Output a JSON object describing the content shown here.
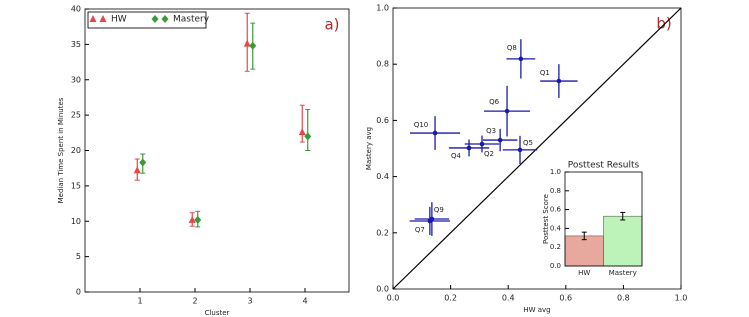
{
  "chart_data": [
    {
      "type": "errorbar",
      "annotation": "a)",
      "xlabel": "Cluster",
      "ylabel": "Median Time Spent in Minutes",
      "xlim": [
        0,
        4.8
      ],
      "ylim": [
        0,
        40
      ],
      "xticks": [
        1,
        2,
        3,
        4
      ],
      "yticks": [
        0,
        5,
        10,
        15,
        20,
        25,
        30,
        35,
        40
      ],
      "legend": "upper left",
      "series": [
        {
          "name": "HW",
          "color": "#e8474a",
          "marker": "triangle",
          "x": [
            0.95,
            1.95,
            2.95,
            3.95
          ],
          "values": [
            17.2,
            10.2,
            35.1,
            22.6
          ],
          "lower": [
            15.8,
            9.3,
            31.2,
            21.2
          ],
          "upper": [
            18.8,
            11.2,
            39.4,
            26.4
          ]
        },
        {
          "name": "Mastery",
          "color": "#3a9a3a",
          "marker": "diamond",
          "x": [
            1.05,
            2.05,
            3.05,
            4.05
          ],
          "values": [
            18.3,
            10.2,
            34.8,
            22.0
          ],
          "lower": [
            16.8,
            9.2,
            31.5,
            20.0
          ],
          "upper": [
            19.5,
            11.4,
            38.0,
            25.8
          ]
        }
      ]
    },
    {
      "type": "scatter",
      "annotation": "b)",
      "xlabel": "HW avg",
      "ylabel": "Mastery avg",
      "xlim": [
        0,
        1
      ],
      "ylim": [
        0,
        1
      ],
      "xticks": [
        {
          "value": 0,
          "label": "0.0"
        },
        0.2,
        0.4,
        0.6,
        0.8,
        {
          "value": 1,
          "label": "1.0"
        }
      ],
      "yticks": [
        {
          "value": 0,
          "label": "0.0"
        },
        0.2,
        0.4,
        0.6,
        0.8,
        {
          "value": 1,
          "label": "1.0"
        }
      ],
      "diagonal": true,
      "color": "#1a1aa8",
      "labels": [
        "Q1",
        "Q2",
        "Q3",
        "Q4",
        "Q5",
        "Q6",
        "Q7",
        "Q8",
        "Q9",
        "Q10"
      ],
      "x": [
        0.576,
        0.309,
        0.372,
        0.264,
        0.441,
        0.396,
        0.128,
        0.444,
        0.135,
        0.146
      ],
      "values": [
        0.74,
        0.516,
        0.53,
        0.502,
        0.495,
        0.633,
        0.242,
        0.819,
        0.249,
        0.555
      ],
      "xerr": [
        0.065,
        0.06,
        0.06,
        0.07,
        0.06,
        0.08,
        0.07,
        0.05,
        0.06,
        0.087
      ],
      "yerr": [
        0.06,
        0.03,
        0.04,
        0.03,
        0.05,
        0.09,
        0.05,
        0.07,
        0.06,
        0.06
      ]
    },
    {
      "type": "bar",
      "title": "Posttest Results",
      "ylabel": "Posttest Score",
      "categories": [
        "HW",
        "Mastery"
      ],
      "values": [
        0.32,
        0.53
      ],
      "errors": [
        0.04,
        0.04
      ],
      "colors": [
        "#e9a89d",
        "#bdf2b8"
      ],
      "ylim": [
        0,
        1
      ],
      "yticks": [
        {
          "value": 0,
          "label": "0.0"
        },
        0.2,
        0.4,
        0.6,
        0.8,
        {
          "value": 1,
          "label": "1.0"
        }
      ]
    }
  ]
}
